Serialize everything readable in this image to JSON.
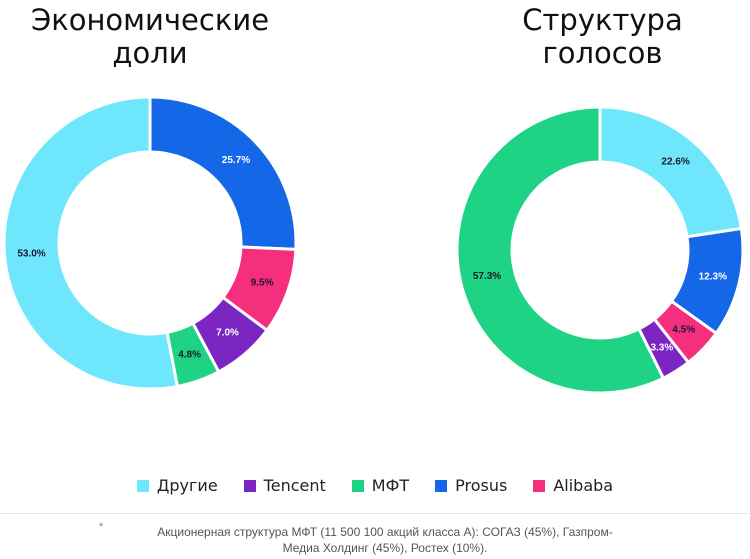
{
  "chart_data": [
    {
      "type": "pie",
      "title": "Экономические доли",
      "title_lines": [
        "Экономические",
        "доли"
      ],
      "slices": [
        {
          "label": "Prosus",
          "value": 25.7,
          "value_label": "25.7%",
          "color": "#1468e8"
        },
        {
          "label": "Alibaba",
          "value": 9.5,
          "value_label": "9.5%",
          "color": "#f52e7e"
        },
        {
          "label": "Tencent",
          "value": 7.0,
          "value_label": "7.0%",
          "color": "#7b25c2"
        },
        {
          "label": "МФТ",
          "value": 4.8,
          "value_label": "4.8%",
          "color": "#1ed384"
        },
        {
          "label": "Другие",
          "value": 53.0,
          "value_label": "53.0%",
          "color": "#6ee6fc"
        }
      ]
    },
    {
      "type": "pie",
      "title": "Структура голосов",
      "title_lines": [
        "Структура",
        "голосов"
      ],
      "slices": [
        {
          "label": "Другие",
          "value": 22.6,
          "value_label": "22.6%",
          "color": "#6ee6fc"
        },
        {
          "label": "Prosus",
          "value": 12.3,
          "value_label": "12.3%",
          "color": "#1468e8"
        },
        {
          "label": "Alibaba",
          "value": 4.5,
          "value_label": "4.5%",
          "color": "#f52e7e"
        },
        {
          "label": "Tencent",
          "value": 3.3,
          "value_label": "3.3%",
          "color": "#7b25c2"
        },
        {
          "label": "МФТ",
          "value": 57.3,
          "value_label": "57.3%",
          "color": "#1ed384"
        }
      ]
    }
  ],
  "legend": [
    {
      "label": "Другие",
      "color": "#6ee6fc"
    },
    {
      "label": "Tencent",
      "color": "#7b25c2"
    },
    {
      "label": "МФТ",
      "color": "#1ed384"
    },
    {
      "label": "Prosus",
      "color": "#1468e8"
    },
    {
      "label": "Alibaba",
      "color": "#f52e7e"
    }
  ],
  "footnote": {
    "mark": "*",
    "text": "Акционерная структура МФТ (11 500 100 акций класса А): СОГАЗ (45%), Газпром-Медиа Холдинг (45%), Ростех (10%)."
  }
}
